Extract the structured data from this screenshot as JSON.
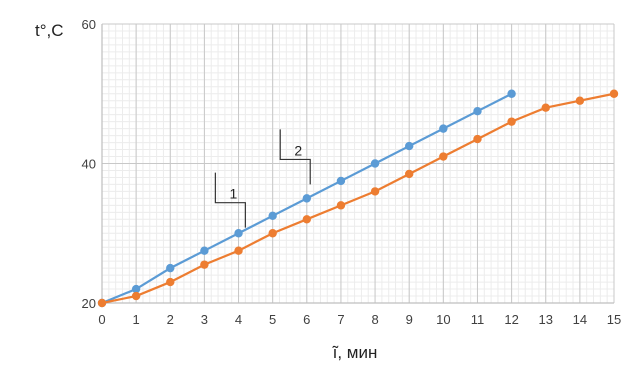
{
  "chart_data": {
    "type": "line",
    "ylabel": "t°,C",
    "xlabel": "̃ı, мин",
    "xlim": [
      0,
      15
    ],
    "ylim": [
      20,
      60
    ],
    "x_ticks": [
      0,
      1,
      2,
      3,
      4,
      5,
      6,
      7,
      8,
      9,
      10,
      11,
      12,
      13,
      14,
      15
    ],
    "y_ticks": [
      20,
      40,
      60
    ],
    "grid": true,
    "legend": "none",
    "series": [
      {
        "color": "#5b9bd5",
        "x": [
          0,
          1,
          2,
          3,
          4,
          5,
          6,
          7,
          8,
          9,
          10,
          11,
          12
        ],
        "y": [
          20,
          22,
          25,
          27.5,
          30,
          32.5,
          35,
          37.5,
          40,
          42.5,
          45,
          47.5,
          50
        ]
      },
      {
        "color": "#ed7d31",
        "x": [
          0,
          1,
          2,
          3,
          4,
          5,
          6,
          7,
          8,
          9,
          10,
          11,
          12,
          13,
          14,
          15
        ],
        "y": [
          20,
          21,
          23,
          25.5,
          27.5,
          30,
          32,
          34,
          36,
          38.5,
          41,
          43.5,
          46,
          48,
          49,
          50
        ]
      }
    ],
    "annotations": [
      {
        "label": "1",
        "x": 4.2,
        "y": 30.8
      },
      {
        "label": "2",
        "x": 6.1,
        "y": 37
      }
    ]
  }
}
